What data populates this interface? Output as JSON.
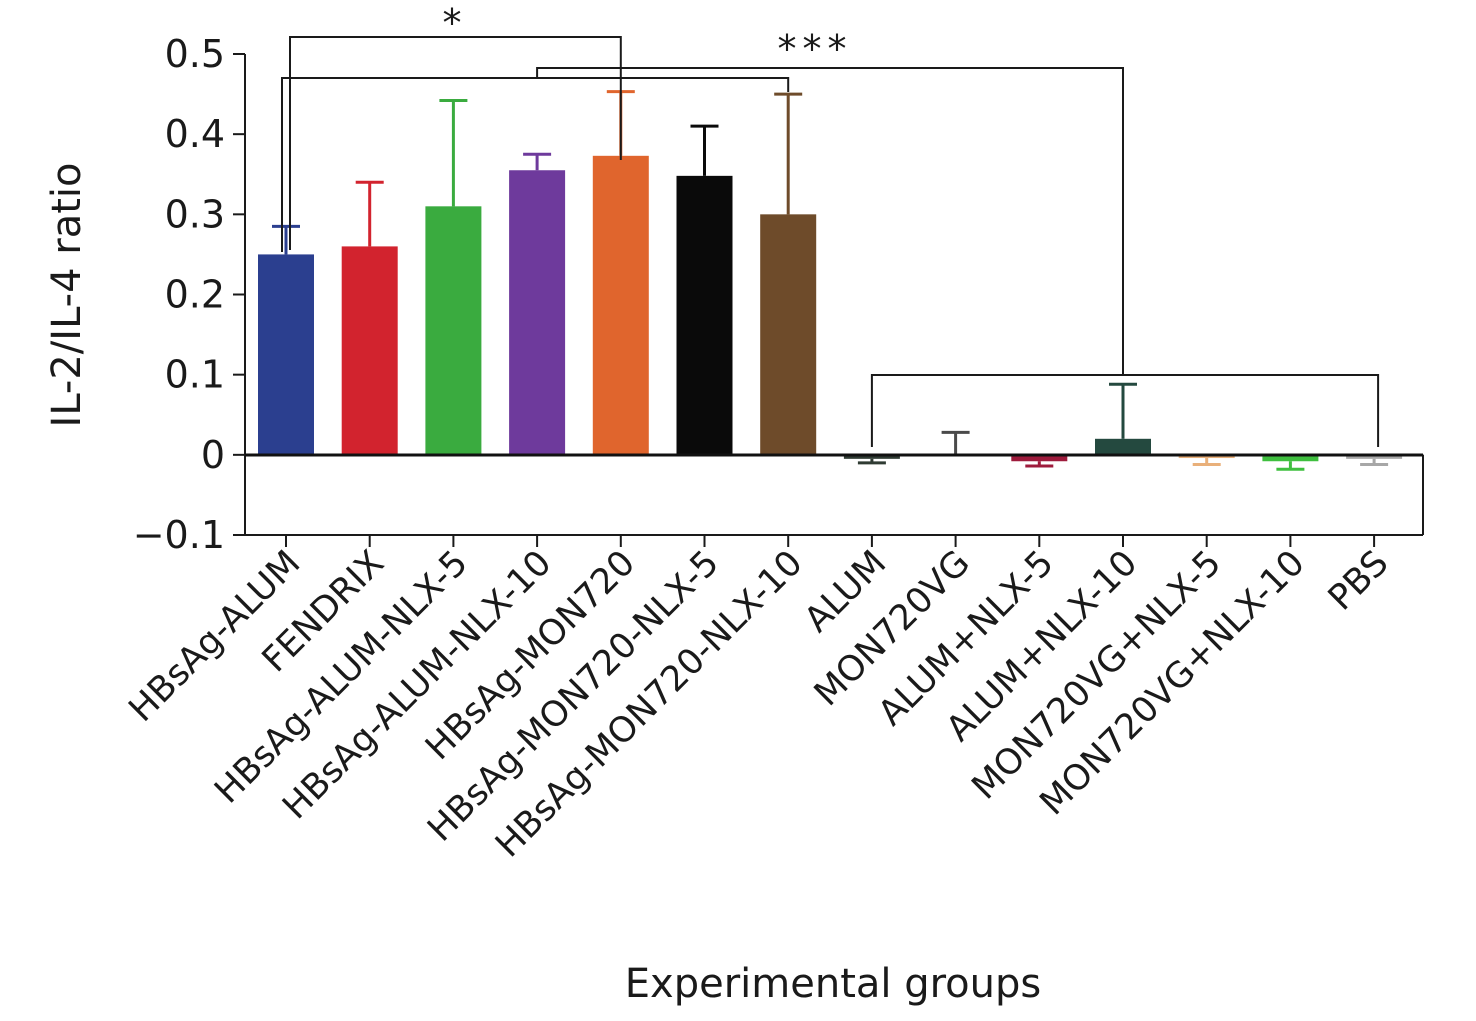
{
  "chart_data": {
    "type": "bar",
    "title": "",
    "xlabel": "Experimental groups",
    "ylabel": "IL-2/IL-4 ratio",
    "ylim": [
      -0.1,
      0.5
    ],
    "yticks": [
      -0.1,
      0,
      0.1,
      0.2,
      0.3,
      0.4,
      0.5
    ],
    "ytick_labels": [
      "−0.1",
      "0",
      "0.1",
      "0.2",
      "0.3",
      "0.4",
      "0.5"
    ],
    "grid": false,
    "legend": "none",
    "categories": [
      "HBsAg-ALUM",
      "FENDRIX",
      "HBsAg-ALUM-NLX-5",
      "HBsAg-ALUM-NLX-10",
      "HBsAg-MON720",
      "HBsAg-MON720-NLX-5",
      "HBsAg-MON720-NLX-10",
      "ALUM",
      "MON720VG",
      "ALUM+NLX-5",
      "ALUM+NLX-10",
      "MON720VG+NLX-5",
      "MON720VG+NLX-10",
      "PBS"
    ],
    "values": [
      0.25,
      0.26,
      0.31,
      0.355,
      0.373,
      0.348,
      0.3,
      -0.005,
      0.0,
      -0.008,
      0.02,
      -0.004,
      -0.008,
      -0.005
    ],
    "errors": [
      0.035,
      0.08,
      0.132,
      0.02,
      0.08,
      0.062,
      0.15,
      0.005,
      0.028,
      0.006,
      0.068,
      0.008,
      0.01,
      0.007
    ],
    "colors": [
      "#2b3f8f",
      "#d2232e",
      "#3aab3f",
      "#6e3a9c",
      "#e0652d",
      "#0a0a0a",
      "#6e4b2a",
      "#2f3b33",
      "#4a4a4a",
      "#9e1b3c",
      "#24493f",
      "#e9b07a",
      "#3fbf3f",
      "#a7a7a7"
    ],
    "significance": [
      {
        "label": "*",
        "left_group_index": 0,
        "right_group_index": 4
      },
      {
        "label": "***",
        "left_group_index": 3,
        "right_group_index": 10
      }
    ]
  }
}
